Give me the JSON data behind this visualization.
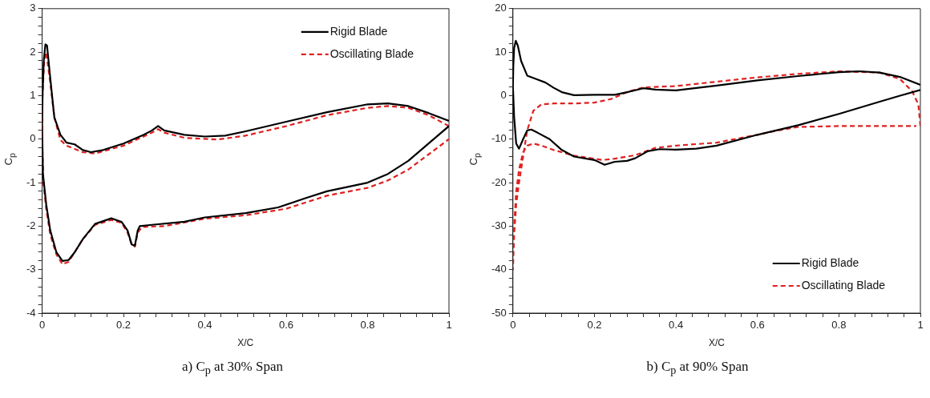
{
  "chart_data": [
    {
      "type": "line",
      "title": "a)  C$_{p}$ at 30% Span",
      "xlabel": "X/C",
      "ylabel": "C$_{p}$",
      "xlim": [
        0,
        1
      ],
      "ylim": [
        -4,
        3
      ],
      "legend": "top right",
      "grid": false,
      "marker": "none",
      "xticks": [
        0,
        {
          "value": 0.04,
          "label": null
        },
        {
          "value": 0.08,
          "label": null
        },
        {
          "value": 0.12,
          "label": null
        },
        {
          "value": 0.16,
          "label": null
        },
        0.2,
        {
          "value": 0.24,
          "label": null
        },
        {
          "value": 0.28,
          "label": null
        },
        {
          "value": 0.32,
          "label": null
        },
        {
          "value": 0.36,
          "label": null
        },
        0.4,
        {
          "value": 0.44,
          "label": null
        },
        {
          "value": 0.48,
          "label": null
        },
        {
          "value": 0.52,
          "label": null
        },
        {
          "value": 0.56,
          "label": null
        },
        0.6,
        {
          "value": 0.64,
          "label": null
        },
        {
          "value": 0.68,
          "label": null
        },
        {
          "value": 0.72,
          "label": null
        },
        {
          "value": 0.76,
          "label": null
        },
        0.8,
        {
          "value": 0.84,
          "label": null
        },
        {
          "value": 0.88,
          "label": null
        },
        {
          "value": 0.92,
          "label": null
        },
        {
          "value": 0.96,
          "label": null
        },
        1
      ],
      "yticks": [
        -4,
        {
          "value": -3.8,
          "label": null
        },
        {
          "value": -3.6,
          "label": null
        },
        {
          "value": -3.4,
          "label": null
        },
        {
          "value": -3.2,
          "label": null
        },
        -3,
        {
          "value": -2.8,
          "label": null
        },
        {
          "value": -2.6,
          "label": null
        },
        {
          "value": -2.4,
          "label": null
        },
        {
          "value": -2.2,
          "label": null
        },
        -2,
        {
          "value": -1.8,
          "label": null
        },
        {
          "value": -1.6,
          "label": null
        },
        {
          "value": -1.4,
          "label": null
        },
        {
          "value": -1.2,
          "label": null
        },
        -1,
        {
          "value": -0.8,
          "label": null
        },
        {
          "value": -0.6,
          "label": null
        },
        {
          "value": -0.4,
          "label": null
        },
        {
          "value": -0.2,
          "label": null
        },
        0,
        {
          "value": 0.2,
          "label": null
        },
        {
          "value": 0.4,
          "label": null
        },
        {
          "value": 0.6,
          "label": null
        },
        {
          "value": 0.8,
          "label": null
        },
        1,
        {
          "value": 1.2,
          "label": null
        },
        {
          "value": 1.4,
          "label": null
        },
        {
          "value": 1.6,
          "label": null
        },
        {
          "value": 1.8,
          "label": null
        },
        2,
        {
          "value": 2.2,
          "label": null
        },
        {
          "value": 2.4,
          "label": null
        },
        {
          "value": 2.6,
          "label": null
        },
        {
          "value": 2.8,
          "label": null
        },
        3
      ],
      "series": [
        {
          "name": "Rigid Blade",
          "color": "#000000",
          "line_style": "solid",
          "x": [
            1,
            0.95,
            0.9,
            0.85,
            0.8,
            0.7,
            0.6,
            0.5,
            0.45,
            0.4,
            0.35,
            0.3,
            0.285,
            0.27,
            0.25,
            0.2,
            0.15,
            0.12,
            0.1,
            0.08,
            0.06,
            0.045,
            0.03,
            0.02,
            0.012,
            0.008,
            0.004,
            0.001,
            0,
            0.002,
            0.01,
            0.02,
            0.035,
            0.05,
            0.065,
            0.08,
            0.1,
            0.13,
            0.17,
            0.195,
            0.21,
            0.22,
            0.228,
            0.235,
            0.24,
            0.27,
            0.35,
            0.4,
            0.5,
            0.58,
            0.65,
            0.7,
            0.8,
            0.85,
            0.9,
            0.95,
            1
          ],
          "values": [
            0.42,
            0.6,
            0.76,
            0.82,
            0.8,
            0.62,
            0.4,
            0.18,
            0.08,
            0.06,
            0.1,
            0.2,
            0.3,
            0.2,
            0.1,
            -0.1,
            -0.25,
            -0.3,
            -0.25,
            -0.12,
            -0.08,
            0.1,
            0.5,
            1.4,
            2.15,
            2.18,
            1.8,
            1.0,
            0.3,
            -0.8,
            -1.5,
            -2.1,
            -2.6,
            -2.8,
            -2.78,
            -2.6,
            -2.3,
            -1.95,
            -1.82,
            -1.9,
            -2.1,
            -2.42,
            -2.45,
            -2.1,
            -2.0,
            -1.97,
            -1.9,
            -1.8,
            -1.7,
            -1.57,
            -1.35,
            -1.2,
            -1.0,
            -0.8,
            -0.5,
            -0.1,
            0.3
          ]
        },
        {
          "name": "Oscillating Blade",
          "color": "#e02020",
          "line_style": "dashed",
          "x": [
            1,
            0.95,
            0.9,
            0.85,
            0.8,
            0.7,
            0.6,
            0.5,
            0.43,
            0.35,
            0.3,
            0.285,
            0.27,
            0.2,
            0.13,
            0.1,
            0.06,
            0.045,
            0.03,
            0.02,
            0.01,
            0.005,
            0.001,
            0,
            0.003,
            0.01,
            0.02,
            0.035,
            0.05,
            0.065,
            0.08,
            0.1,
            0.13,
            0.17,
            0.195,
            0.21,
            0.22,
            0.228,
            0.235,
            0.245,
            0.3,
            0.4,
            0.5,
            0.6,
            0.7,
            0.8,
            0.85,
            0.9,
            0.95,
            1
          ],
          "values": [
            0.3,
            0.55,
            0.72,
            0.76,
            0.72,
            0.55,
            0.3,
            0.08,
            -0.01,
            0.03,
            0.15,
            0.23,
            0.15,
            -0.15,
            -0.33,
            -0.3,
            -0.15,
            -0.02,
            0.5,
            1.3,
            2.0,
            1.8,
            1.0,
            0.0,
            -1.0,
            -1.6,
            -2.2,
            -2.65,
            -2.88,
            -2.82,
            -2.6,
            -2.3,
            -1.97,
            -1.86,
            -1.92,
            -2.15,
            -2.42,
            -2.47,
            -2.15,
            -2.02,
            -2.0,
            -1.83,
            -1.75,
            -1.6,
            -1.3,
            -1.12,
            -0.95,
            -0.7,
            -0.35,
            0.0
          ]
        }
      ]
    },
    {
      "type": "line",
      "title": "b)  C$_{p}$ at 90% Span",
      "xlabel": "X/C",
      "ylabel": "C$_{p}$",
      "xlim": [
        0,
        1
      ],
      "ylim": [
        -50,
        20
      ],
      "legend": "bottom right",
      "grid": false,
      "marker": "none",
      "xticks": [
        0,
        {
          "value": 0.04,
          "label": null
        },
        {
          "value": 0.08,
          "label": null
        },
        {
          "value": 0.12,
          "label": null
        },
        {
          "value": 0.16,
          "label": null
        },
        0.2,
        {
          "value": 0.24,
          "label": null
        },
        {
          "value": 0.28,
          "label": null
        },
        {
          "value": 0.32,
          "label": null
        },
        {
          "value": 0.36,
          "label": null
        },
        0.4,
        {
          "value": 0.44,
          "label": null
        },
        {
          "value": 0.48,
          "label": null
        },
        {
          "value": 0.52,
          "label": null
        },
        {
          "value": 0.56,
          "label": null
        },
        0.6,
        {
          "value": 0.64,
          "label": null
        },
        {
          "value": 0.68,
          "label": null
        },
        {
          "value": 0.72,
          "label": null
        },
        {
          "value": 0.76,
          "label": null
        },
        0.8,
        {
          "value": 0.84,
          "label": null
        },
        {
          "value": 0.88,
          "label": null
        },
        {
          "value": 0.92,
          "label": null
        },
        {
          "value": 0.96,
          "label": null
        },
        1
      ],
      "yticks": [
        -50,
        {
          "value": -48,
          "label": null
        },
        {
          "value": -46,
          "label": null
        },
        {
          "value": -44,
          "label": null
        },
        {
          "value": -42,
          "label": null
        },
        -40,
        {
          "value": -38,
          "label": null
        },
        {
          "value": -36,
          "label": null
        },
        {
          "value": -34,
          "label": null
        },
        {
          "value": -32,
          "label": null
        },
        -30,
        {
          "value": -28,
          "label": null
        },
        {
          "value": -26,
          "label": null
        },
        {
          "value": -24,
          "label": null
        },
        {
          "value": -22,
          "label": null
        },
        -20,
        {
          "value": -18,
          "label": null
        },
        {
          "value": -16,
          "label": null
        },
        {
          "value": -14,
          "label": null
        },
        {
          "value": -12,
          "label": null
        },
        -10,
        {
          "value": -8,
          "label": null
        },
        {
          "value": -6,
          "label": null
        },
        {
          "value": -4,
          "label": null
        },
        {
          "value": -2,
          "label": null
        },
        0,
        {
          "value": 2,
          "label": null
        },
        {
          "value": 4,
          "label": null
        },
        {
          "value": 6,
          "label": null
        },
        {
          "value": 8,
          "label": null
        },
        10,
        {
          "value": 12,
          "label": null
        },
        {
          "value": 14,
          "label": null
        },
        {
          "value": 16,
          "label": null
        },
        {
          "value": 18,
          "label": null
        },
        20
      ],
      "series": [
        {
          "name": "Rigid Blade",
          "color": "#000000",
          "line_style": "solid",
          "x": [
            1,
            0.95,
            0.9,
            0.85,
            0.8,
            0.7,
            0.6,
            0.5,
            0.4,
            0.35,
            0.32,
            0.28,
            0.25,
            0.2,
            0.15,
            0.12,
            0.1,
            0.08,
            0.06,
            0.035,
            0.02,
            0.012,
            0.007,
            0.003,
            0.001,
            0,
            0.003,
            0.008,
            0.015,
            0.025,
            0.035,
            0.045,
            0.06,
            0.09,
            0.12,
            0.15,
            0.2,
            0.225,
            0.25,
            0.28,
            0.3,
            0.33,
            0.36,
            0.4,
            0.45,
            0.5,
            0.6,
            0.7,
            0.8,
            0.9,
            0.95,
            1
          ],
          "values": [
            2.5,
            4.3,
            5.3,
            5.6,
            5.4,
            4.5,
            3.5,
            2.3,
            1.2,
            1.4,
            1.7,
            0.8,
            0.2,
            0.2,
            0.1,
            0.8,
            1.8,
            3.0,
            3.7,
            4.6,
            8.0,
            11.5,
            12.6,
            11.0,
            7,
            2,
            -5,
            -11,
            -12.2,
            -10,
            -8,
            -7.8,
            -8.5,
            -10,
            -12.5,
            -14,
            -14.8,
            -15.9,
            -15.2,
            -15,
            -14.4,
            -12.8,
            -12.3,
            -12.4,
            -12.2,
            -11.5,
            -9,
            -6.8,
            -4.2,
            -1.4,
            0,
            1.3
          ]
        },
        {
          "name": "Oscillating Blade",
          "color": "#e02020",
          "line_style": "dashed",
          "x": [
            1,
            0.995,
            0.98,
            0.95,
            0.9,
            0.8,
            0.7,
            0.6,
            0.5,
            0.4,
            0.32,
            0.28,
            0.24,
            0.2,
            0.15,
            0.1,
            0.07,
            0.05,
            0.035,
            0.025,
            0.015,
            0.008,
            0.003,
            0,
            0.003,
            0.008,
            0.015,
            0.025,
            0.035,
            0.05,
            0.07,
            0.1,
            0.15,
            0.2,
            0.22,
            0.25,
            0.3,
            0.35,
            0.4,
            0.5,
            0.6,
            0.65,
            0.7,
            0.8,
            0.9,
            0.99
          ],
          "values": [
            -7,
            -2,
            1.0,
            3.8,
            5.3,
            5.6,
            5.0,
            4.2,
            3.2,
            2.2,
            1.9,
            0.8,
            -0.8,
            -1.6,
            -1.8,
            -1.8,
            -2.0,
            -3.5,
            -8,
            -14,
            -20,
            -25,
            -32,
            -40,
            -30,
            -22,
            -17,
            -13,
            -11.5,
            -11,
            -11.5,
            -12.5,
            -13.8,
            -14.5,
            -14.8,
            -14.5,
            -13.7,
            -12,
            -11.5,
            -10.8,
            -9,
            -8,
            -7.2,
            -7,
            -7,
            -7
          ]
        }
      ]
    }
  ]
}
